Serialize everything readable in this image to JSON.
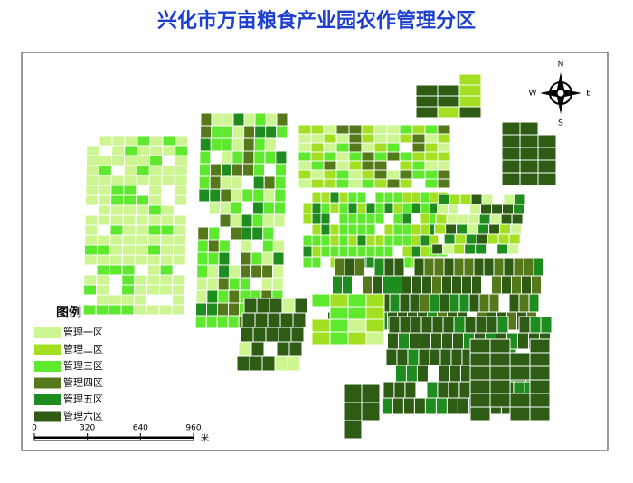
{
  "title": "兴化市万亩粮食产业园农作管理分区",
  "legend": {
    "title": "图例",
    "items": [
      {
        "label": "管理一区",
        "color": "#cdf591"
      },
      {
        "label": "管理二区",
        "color": "#a3e024"
      },
      {
        "label": "管理三区",
        "color": "#5ee82e"
      },
      {
        "label": "管理四区",
        "color": "#55791a"
      },
      {
        "label": "管理五区",
        "color": "#1e8c1e"
      },
      {
        "label": "管理六区",
        "color": "#2f5c14"
      }
    ]
  },
  "compass": {
    "n": "N",
    "s": "S",
    "e": "E",
    "w": "W"
  },
  "scale_bar": {
    "ticks": [
      0,
      320,
      640,
      960
    ],
    "unit": "米"
  }
}
